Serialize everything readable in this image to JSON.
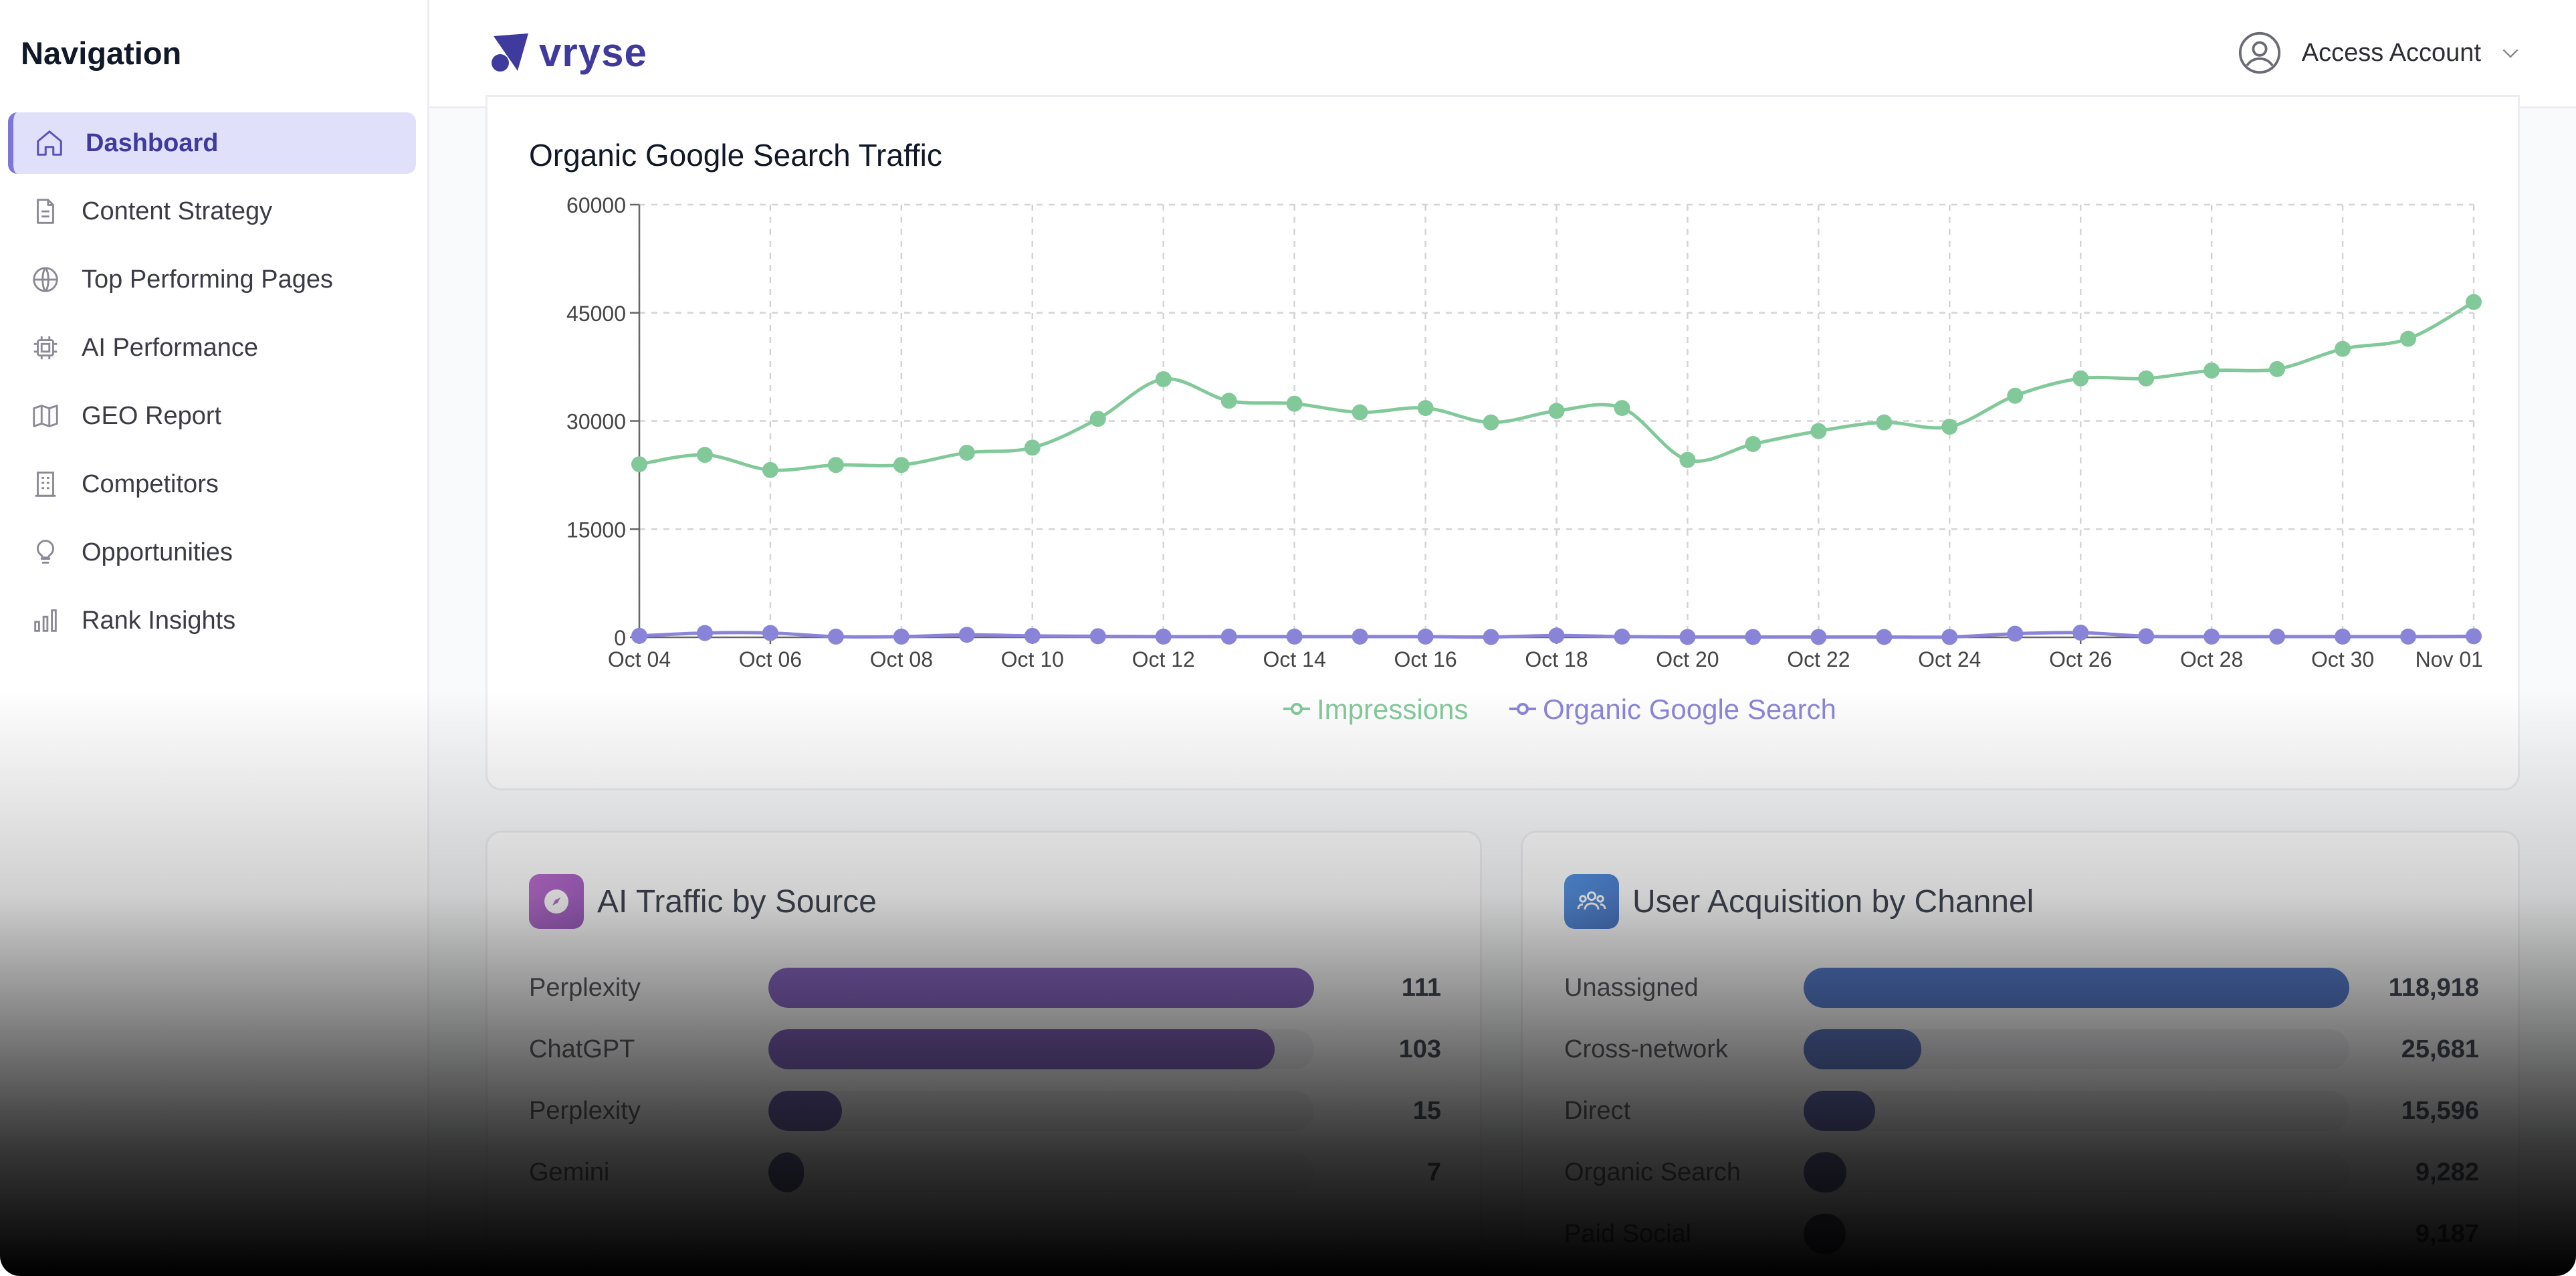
{
  "sidebar": {
    "title": "Navigation",
    "items": [
      {
        "label": "Dashboard",
        "icon": "home-icon",
        "active": true
      },
      {
        "label": "Content Strategy",
        "icon": "document-icon"
      },
      {
        "label": "Top Performing Pages",
        "icon": "globe-icon"
      },
      {
        "label": "AI Performance",
        "icon": "chip-icon"
      },
      {
        "label": "GEO Report",
        "icon": "map-icon"
      },
      {
        "label": "Competitors",
        "icon": "building-icon"
      },
      {
        "label": "Opportunities",
        "icon": "lightbulb-icon"
      },
      {
        "label": "Rank Insights",
        "icon": "bar-chart-icon"
      }
    ]
  },
  "header": {
    "logo_text": "vryse",
    "account_label": "Access Account"
  },
  "chart_data": {
    "type": "line",
    "title": "Organic Google Search Traffic",
    "x": [
      "Oct 04",
      "Oct 05",
      "Oct 06",
      "Oct 07",
      "Oct 08",
      "Oct 09",
      "Oct 10",
      "Oct 11",
      "Oct 12",
      "Oct 13",
      "Oct 14",
      "Oct 15",
      "Oct 16",
      "Oct 17",
      "Oct 18",
      "Oct 19",
      "Oct 20",
      "Oct 21",
      "Oct 22",
      "Oct 23",
      "Oct 24",
      "Oct 25",
      "Oct 26",
      "Oct 27",
      "Oct 28",
      "Oct 29",
      "Oct 30",
      "Oct 31",
      "Nov 01"
    ],
    "x_tick_labels": [
      "Oct 04",
      "Oct 06",
      "Oct 08",
      "Oct 10",
      "Oct 12",
      "Oct 14",
      "Oct 16",
      "Oct 18",
      "Oct 20",
      "Oct 22",
      "Oct 24",
      "Oct 26",
      "Oct 28",
      "Oct 30",
      "Nov 01"
    ],
    "y_ticks": [
      "0",
      "15000",
      "30000",
      "45000",
      "60000"
    ],
    "ylim": [
      0,
      60000
    ],
    "grid": true,
    "legend_position": "bottom",
    "series": [
      {
        "name": "Impressions",
        "color": "#82c99a",
        "values": [
          24000,
          25300,
          23200,
          23900,
          23900,
          25600,
          26300,
          30300,
          35800,
          32800,
          32400,
          31200,
          31800,
          29800,
          31400,
          31800,
          24600,
          26800,
          28600,
          29800,
          29200,
          33500,
          35900,
          35900,
          37000,
          37200,
          40000,
          41400,
          46500
        ]
      },
      {
        "name": "Organic Google Search",
        "color": "#8a84d9",
        "values": [
          200,
          600,
          600,
          100,
          100,
          350,
          200,
          150,
          100,
          100,
          100,
          100,
          100,
          50,
          250,
          100,
          50,
          50,
          50,
          50,
          50,
          500,
          650,
          150,
          100,
          100,
          100,
          100,
          150
        ]
      }
    ]
  },
  "ai_traffic": {
    "title": "AI Traffic by Source",
    "icon": "compass-icon",
    "max": 111,
    "rows": [
      {
        "label": "Perplexity",
        "value": "111",
        "amount": 111,
        "color": "#6b3fb5"
      },
      {
        "label": "ChatGPT",
        "value": "103",
        "amount": 103,
        "color": "#5c35a8"
      },
      {
        "label": "Perplexity",
        "value": "15",
        "amount": 15,
        "color": "#3c2f8f"
      },
      {
        "label": "Gemini",
        "value": "7",
        "amount": 7,
        "color": "#2e2a6e"
      }
    ]
  },
  "user_acquisition": {
    "title": "User Acquisition by Channel",
    "icon": "users-icon",
    "max": 118918,
    "rows": [
      {
        "label": "Unassigned",
        "value": "118,918",
        "amount": 118918,
        "color": "#2a5bc4"
      },
      {
        "label": "Cross-network",
        "value": "25,681",
        "amount": 25681,
        "color": "#2f4fb0"
      },
      {
        "label": "Direct",
        "value": "15,596",
        "amount": 15596,
        "color": "#323c98"
      },
      {
        "label": "Organic Search",
        "value": "9,282",
        "amount": 9282,
        "color": "#2c3274"
      },
      {
        "label": "Paid Social",
        "value": "9,187",
        "amount": 9187,
        "color": "#222650"
      }
    ]
  }
}
